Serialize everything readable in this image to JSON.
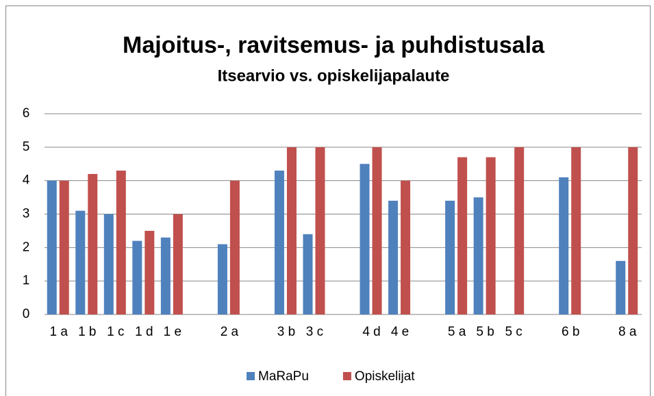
{
  "chart_data": {
    "type": "bar",
    "title": "Majoitus-, ravitsemus- ja puhdistusala",
    "subtitle": "Itsearvio vs. opiskelijapalaute",
    "categories": [
      "1 a",
      "1 b",
      "1 c",
      "1 d",
      "1 e",
      null,
      "2 a",
      null,
      "3 b",
      "3 c",
      null,
      "4 d",
      "4 e",
      null,
      "5 a",
      "5 b",
      "5 c",
      null,
      "6 b",
      null,
      "8 a"
    ],
    "series": [
      {
        "name": "MaRaPu",
        "color": "#4f81bd",
        "values": [
          4,
          3.1,
          3,
          2.2,
          2.3,
          null,
          2.1,
          null,
          4.3,
          2.4,
          null,
          4.5,
          3.4,
          null,
          3.4,
          3.5,
          null,
          null,
          4.1,
          null,
          1.6
        ]
      },
      {
        "name": "Opiskelijat",
        "color": "#c0504d",
        "values": [
          4,
          4.2,
          4.3,
          2.5,
          3,
          null,
          4,
          null,
          5,
          5,
          null,
          5,
          4,
          null,
          4.7,
          4.7,
          5,
          null,
          5,
          null,
          5
        ]
      }
    ],
    "ylim": [
      0,
      6
    ],
    "yticks": [
      0,
      1,
      2,
      3,
      4,
      5,
      6
    ],
    "grid": true,
    "legend": "bottom"
  }
}
